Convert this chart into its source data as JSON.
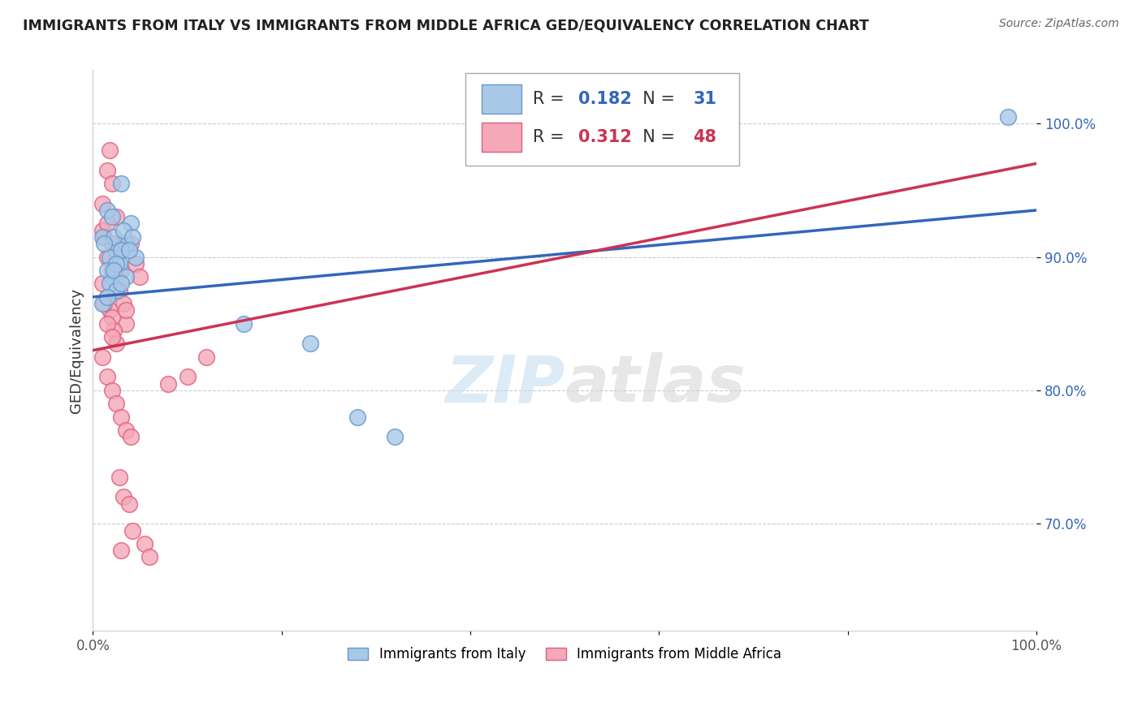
{
  "title": "IMMIGRANTS FROM ITALY VS IMMIGRANTS FROM MIDDLE AFRICA GED/EQUIVALENCY CORRELATION CHART",
  "source": "Source: ZipAtlas.com",
  "ylabel": "GED/Equivalency",
  "xlim": [
    0,
    100
  ],
  "ylim": [
    62,
    104
  ],
  "y_ticks": [
    70,
    80,
    90,
    100
  ],
  "y_tick_labels": [
    "70.0%",
    "80.0%",
    "90.0%",
    "100.0%"
  ],
  "italy_color": "#a8c8e8",
  "italy_edge_color": "#6699cc",
  "middle_africa_color": "#f4a8b8",
  "middle_africa_edge_color": "#e06080",
  "italy_R": 0.182,
  "italy_N": 31,
  "middle_africa_R": 0.312,
  "middle_africa_N": 48,
  "legend_label_italy": "Immigrants from Italy",
  "legend_label_middle_africa": "Immigrants from Middle Africa",
  "italy_line_color": "#3366bb",
  "middle_africa_line_color": "#cc3355",
  "italy_line_y0": 87.0,
  "italy_line_y100": 93.5,
  "middle_africa_line_y0": 83.0,
  "middle_africa_line_y100": 97.0,
  "background_color": "#ffffff",
  "grid_color": "#cccccc",
  "watermark_zip": "ZIP",
  "watermark_atlas": "atlas",
  "italy_scatter_x": [
    1.5,
    3.0,
    1.0,
    2.0,
    4.0,
    2.5,
    3.5,
    1.8,
    2.2,
    3.2,
    2.8,
    1.2,
    4.5,
    2.0,
    1.5,
    3.0,
    2.5,
    1.8,
    2.2,
    4.2,
    3.8,
    1.0,
    2.5,
    3.5,
    1.5,
    3.0,
    16.0,
    23.0,
    28.0,
    32.0,
    97.0
  ],
  "italy_scatter_y": [
    93.5,
    95.5,
    91.5,
    93.0,
    92.5,
    90.5,
    91.0,
    90.0,
    91.5,
    92.0,
    89.5,
    91.0,
    90.0,
    88.5,
    89.0,
    90.5,
    89.5,
    88.0,
    89.0,
    91.5,
    90.5,
    86.5,
    87.5,
    88.5,
    87.0,
    88.0,
    85.0,
    83.5,
    78.0,
    76.5,
    100.5
  ],
  "middle_africa_scatter_x": [
    1.0,
    1.5,
    1.8,
    2.0,
    2.5,
    3.0,
    1.2,
    1.5,
    2.0,
    2.5,
    2.8,
    3.2,
    3.5,
    1.0,
    1.5,
    2.0,
    2.5,
    3.0,
    1.0,
    1.5,
    1.8,
    2.0,
    2.2,
    2.5,
    1.2,
    1.5,
    2.0,
    8.0,
    10.0,
    12.0,
    4.0,
    4.5,
    5.0,
    1.0,
    1.5,
    2.0,
    2.5,
    3.0,
    3.5,
    4.0,
    2.8,
    3.2,
    3.8,
    4.2,
    5.5,
    6.0,
    3.5,
    3.0
  ],
  "middle_africa_scatter_y": [
    92.0,
    96.5,
    98.0,
    95.5,
    93.0,
    91.0,
    91.5,
    90.0,
    89.0,
    88.5,
    87.5,
    86.5,
    85.0,
    94.0,
    92.5,
    91.0,
    90.0,
    89.0,
    88.0,
    87.0,
    86.0,
    85.5,
    84.5,
    83.5,
    86.5,
    85.0,
    84.0,
    80.5,
    81.0,
    82.5,
    91.0,
    89.5,
    88.5,
    82.5,
    81.0,
    80.0,
    79.0,
    78.0,
    77.0,
    76.5,
    73.5,
    72.0,
    71.5,
    69.5,
    68.5,
    67.5,
    86.0,
    68.0
  ]
}
